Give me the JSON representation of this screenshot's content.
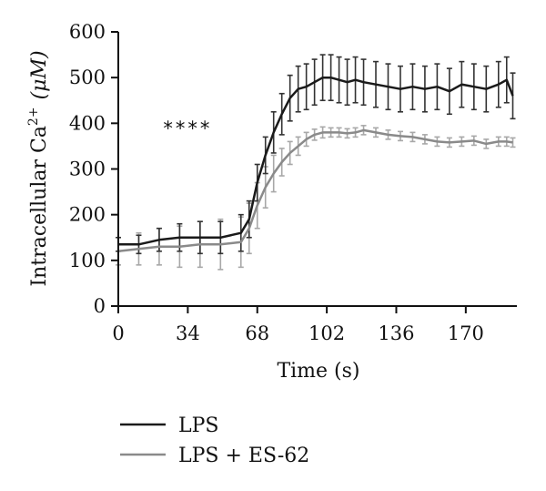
{
  "chart_data": {
    "type": "line",
    "xlabel": "Time (s)",
    "ylabel_main": "Intracellular Ca",
    "ylabel_sup": "2+",
    "ylabel_unit": "(μM)",
    "annotation": "****",
    "annotation_x": 34,
    "annotation_y": 375,
    "xlim": [
      0,
      195
    ],
    "ylim": [
      0,
      600
    ],
    "xticks": [
      0,
      34,
      68,
      102,
      136,
      170
    ],
    "yticks": [
      0,
      100,
      200,
      300,
      400,
      500,
      600
    ],
    "grid": false,
    "legend_placement": "bottom",
    "series": [
      {
        "name": "LPS",
        "color": "#1a1a1a",
        "error_color": "#333333",
        "x": [
          0,
          10,
          20,
          30,
          40,
          50,
          60,
          64,
          68,
          72,
          76,
          80,
          84,
          88,
          92,
          96,
          100,
          104,
          108,
          112,
          116,
          120,
          126,
          132,
          138,
          144,
          150,
          156,
          162,
          168,
          174,
          180,
          186,
          190,
          193
        ],
        "y": [
          135,
          135,
          145,
          150,
          150,
          150,
          160,
          190,
          270,
          330,
          380,
          420,
          455,
          475,
          480,
          490,
          500,
          500,
          495,
          490,
          495,
          490,
          485,
          480,
          475,
          480,
          475,
          480,
          470,
          485,
          480,
          475,
          485,
          495,
          460
        ],
        "err": [
          15,
          20,
          25,
          30,
          35,
          35,
          40,
          40,
          40,
          40,
          45,
          45,
          50,
          50,
          50,
          50,
          50,
          50,
          50,
          50,
          50,
          50,
          50,
          50,
          50,
          50,
          50,
          50,
          50,
          50,
          50,
          50,
          50,
          50,
          50
        ]
      },
      {
        "name": "LPS + ES-62",
        "color": "#8a8a8a",
        "error_color": "#a8a8a8",
        "x": [
          0,
          10,
          20,
          30,
          40,
          50,
          60,
          64,
          68,
          72,
          76,
          80,
          84,
          88,
          92,
          96,
          100,
          104,
          108,
          112,
          116,
          120,
          126,
          132,
          138,
          144,
          150,
          156,
          162,
          168,
          174,
          180,
          186,
          190,
          193
        ],
        "y": [
          120,
          125,
          130,
          130,
          135,
          135,
          140,
          170,
          220,
          260,
          290,
          315,
          335,
          350,
          365,
          375,
          380,
          380,
          380,
          378,
          380,
          385,
          380,
          375,
          372,
          370,
          365,
          360,
          358,
          360,
          362,
          355,
          360,
          360,
          358
        ],
        "err": [
          30,
          35,
          40,
          45,
          50,
          55,
          55,
          55,
          50,
          45,
          40,
          30,
          25,
          20,
          15,
          12,
          12,
          10,
          10,
          10,
          10,
          10,
          10,
          10,
          10,
          10,
          10,
          10,
          10,
          10,
          10,
          10,
          10,
          10,
          10
        ]
      }
    ]
  }
}
